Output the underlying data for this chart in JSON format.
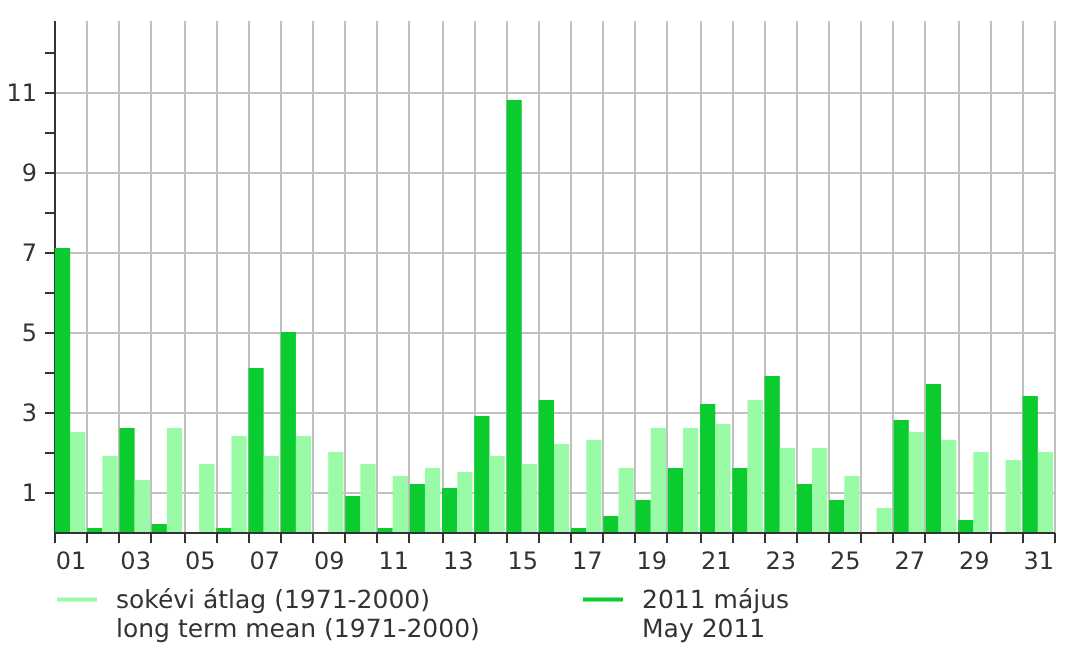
{
  "chart_data": {
    "type": "bar",
    "categories": [
      "01",
      null,
      "03",
      null,
      "05",
      null,
      "07",
      null,
      "09",
      null,
      "11",
      null,
      "13",
      null,
      "15",
      null,
      "17",
      null,
      "19",
      null,
      "21",
      null,
      "23",
      null,
      "25",
      null,
      "27",
      null,
      "29",
      null,
      "31"
    ],
    "series": [
      {
        "name": "2011 május\nMay 2011",
        "color": "#0acc2e",
        "values": [
          7.1,
          0.1,
          2.6,
          0.2,
          0,
          0.1,
          4.1,
          5.0,
          0,
          0.9,
          0.1,
          1.2,
          1.1,
          2.9,
          10.8,
          3.3,
          0.1,
          0.4,
          0.8,
          1.6,
          3.2,
          1.6,
          3.9,
          1.2,
          0.8,
          0,
          2.8,
          3.7,
          0.3,
          0,
          3.4
        ]
      },
      {
        "name": "sokévi átlag (1971-2000)\nlong term mean (1971-2000)",
        "color": "#99fba6",
        "values": [
          2.5,
          1.9,
          1.3,
          2.6,
          1.7,
          2.4,
          1.9,
          2.4,
          2.0,
          1.7,
          1.4,
          1.6,
          1.5,
          1.9,
          1.7,
          2.2,
          2.3,
          1.6,
          2.6,
          2.6,
          2.7,
          3.3,
          2.1,
          2.1,
          1.4,
          0.6,
          2.5,
          2.3,
          2.0,
          1.8,
          2.0
        ]
      }
    ],
    "ylim": [
      0,
      12.8
    ],
    "yticks": [
      1,
      {
        "value": 2,
        "label": null
      },
      3,
      {
        "value": 4,
        "label": null
      },
      5,
      {
        "value": 6,
        "label": null
      },
      7,
      {
        "value": 8,
        "label": null
      },
      9,
      {
        "value": 10,
        "label": null
      },
      11,
      {
        "value": 12,
        "label": null
      }
    ],
    "grid": true,
    "legend": "bottom"
  }
}
